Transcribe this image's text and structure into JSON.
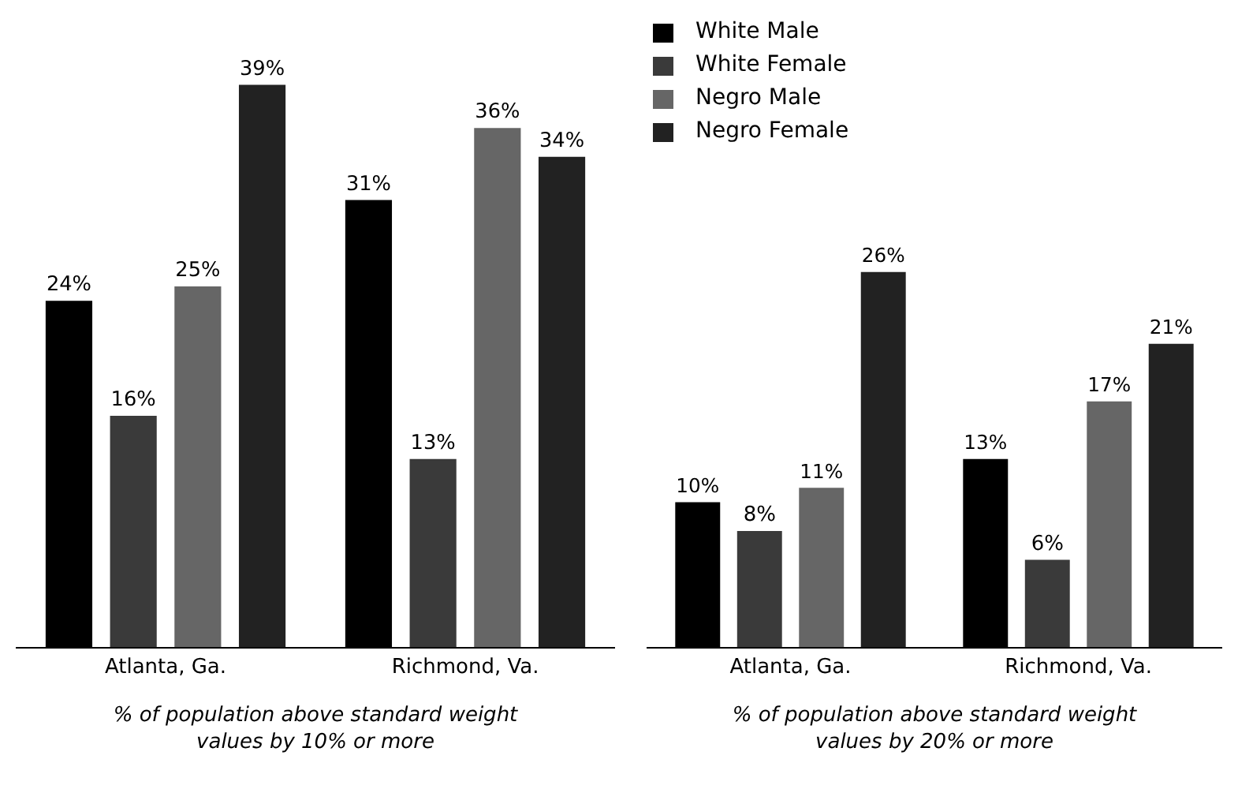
{
  "chart_data": [
    {
      "type": "bar",
      "categories": [
        "Atlanta, Ga.",
        "Richmond, Va."
      ],
      "xlabel": "% of population above standard weight values by 10% or more",
      "tick_labels": "x",
      "legend": false,
      "series": [
        {
          "color": "#000000",
          "values": [
            24,
            31
          ],
          "value_labels": [
            "24%",
            "31%"
          ]
        },
        {
          "color": "#3a3a3a",
          "values": [
            16,
            13
          ],
          "value_labels": [
            "16%",
            "13%"
          ]
        },
        {
          "color": "#666666",
          "values": [
            25,
            36
          ],
          "value_labels": [
            "25%",
            "36%"
          ]
        },
        {
          "color": "#222222",
          "values": [
            39,
            34
          ],
          "value_labels": [
            "39%",
            "34%"
          ]
        }
      ]
    },
    {
      "type": "bar",
      "categories": [
        "Atlanta, Ga.",
        "Richmond, Va."
      ],
      "xlabel": "% of population above standard weight values by 20% or more",
      "tick_labels": "x",
      "legend": "top left",
      "series": [
        {
          "name": "White Male",
          "color": "#000000",
          "values": [
            10,
            13
          ],
          "value_labels": [
            "10%",
            "13%"
          ]
        },
        {
          "name": "White Female",
          "color": "#3a3a3a",
          "values": [
            8,
            6
          ],
          "value_labels": [
            "8%",
            "6%"
          ]
        },
        {
          "name": "Negro Male",
          "color": "#666666",
          "values": [
            11,
            17
          ],
          "value_labels": [
            "11%",
            "17%"
          ]
        },
        {
          "name": "Negro Female",
          "color": "#222222",
          "values": [
            26,
            21
          ],
          "value_labels": [
            "26%",
            "21%"
          ]
        }
      ]
    }
  ]
}
